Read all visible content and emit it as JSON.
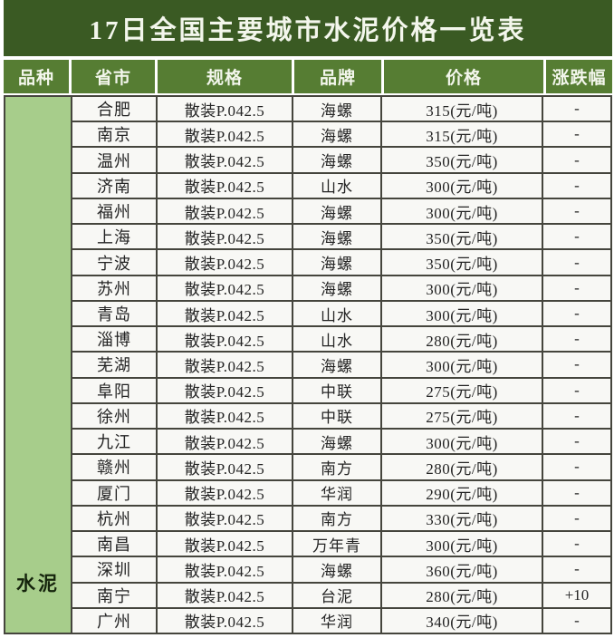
{
  "chart_data": {
    "type": "table",
    "title": "17日全国主要城市水泥价格一览表",
    "columns": [
      "品种",
      "省市",
      "规格",
      "品牌",
      "价格",
      "涨跌幅"
    ],
    "variety": "水泥",
    "rows": [
      {
        "city": "合肥",
        "spec": "散装P.042.5",
        "brand": "海螺",
        "price": "315(元/吨)",
        "change": "-"
      },
      {
        "city": "南京",
        "spec": "散装P.042.5",
        "brand": "海螺",
        "price": "315(元/吨)",
        "change": "-"
      },
      {
        "city": "温州",
        "spec": "散装P.042.5",
        "brand": "海螺",
        "price": "350(元/吨)",
        "change": "-"
      },
      {
        "city": "济南",
        "spec": "散装P.042.5",
        "brand": "山水",
        "price": "300(元/吨)",
        "change": "-"
      },
      {
        "city": "福州",
        "spec": "散装P.042.5",
        "brand": "海螺",
        "price": "300(元/吨)",
        "change": "-"
      },
      {
        "city": "上海",
        "spec": "散装P.042.5",
        "brand": "海螺",
        "price": "350(元/吨)",
        "change": "-"
      },
      {
        "city": "宁波",
        "spec": "散装P.042.5",
        "brand": "海螺",
        "price": "350(元/吨)",
        "change": "-"
      },
      {
        "city": "苏州",
        "spec": "散装P.042.5",
        "brand": "海螺",
        "price": "300(元/吨)",
        "change": "-"
      },
      {
        "city": "青岛",
        "spec": "散装P.042.5",
        "brand": "山水",
        "price": "300(元/吨)",
        "change": "-"
      },
      {
        "city": "淄博",
        "spec": "散装P.042.5",
        "brand": "山水",
        "price": "280(元/吨)",
        "change": "-"
      },
      {
        "city": "芜湖",
        "spec": "散装P.042.5",
        "brand": "海螺",
        "price": "300(元/吨)",
        "change": "-"
      },
      {
        "city": "阜阳",
        "spec": "散装P.042.5",
        "brand": "中联",
        "price": "275(元/吨)",
        "change": "-"
      },
      {
        "city": "徐州",
        "spec": "散装P.042.5",
        "brand": "中联",
        "price": "275(元/吨)",
        "change": "-"
      },
      {
        "city": "九江",
        "spec": "散装P.042.5",
        "brand": "海螺",
        "price": "300(元/吨)",
        "change": "-"
      },
      {
        "city": "赣州",
        "spec": "散装P.042.5",
        "brand": "南方",
        "price": "280(元/吨)",
        "change": "-"
      },
      {
        "city": "厦门",
        "spec": "散装P.042.5",
        "brand": "华润",
        "price": "290(元/吨)",
        "change": "-"
      },
      {
        "city": "杭州",
        "spec": "散装P.042.5",
        "brand": "南方",
        "price": "330(元/吨)",
        "change": "-"
      },
      {
        "city": "南昌",
        "spec": "散装P.042.5",
        "brand": "万年青",
        "price": "300(元/吨)",
        "change": "-"
      },
      {
        "city": "深圳",
        "spec": "散装P.042.5",
        "brand": "海螺",
        "price": "360(元/吨)",
        "change": "-"
      },
      {
        "city": "南宁",
        "spec": "散装P.042.5",
        "brand": "台泥",
        "price": "280(元/吨)",
        "change": "+10"
      },
      {
        "city": "广州",
        "spec": "散装P.042.5",
        "brand": "华润",
        "price": "340(元/吨)",
        "change": "-"
      }
    ]
  },
  "colors": {
    "title_bg": "#3a5a23",
    "header_bg": "#567d33",
    "variety_bg": "#a7cd8b",
    "cell_bg": "#f8f8f5",
    "grid_line": "#45453d",
    "header_text": "#f3f6ec",
    "cell_text": "#242424"
  }
}
